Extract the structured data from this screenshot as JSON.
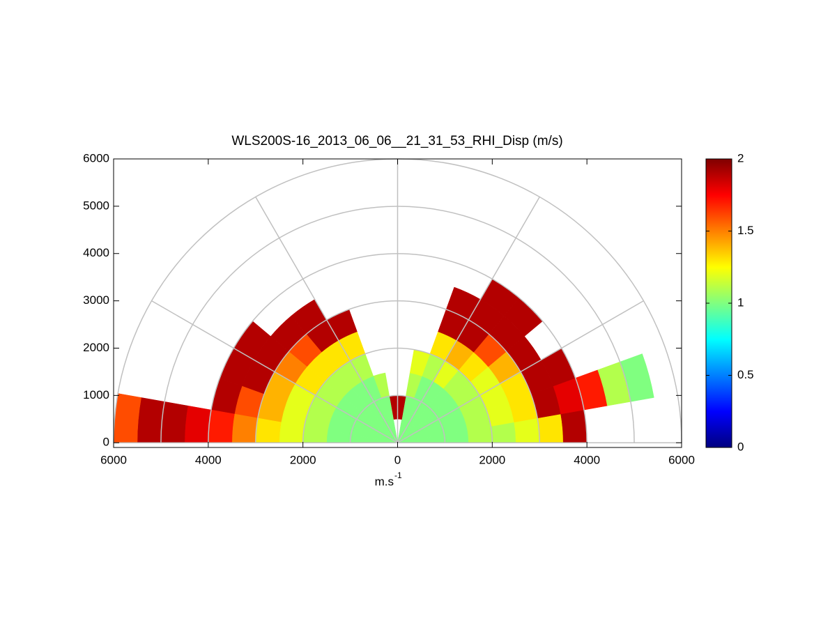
{
  "chart_data": {
    "type": "polar_heatmap",
    "title": "WLS200S-16_2013_06_06__21_31_53_RHI_Disp (m/s)",
    "xlabel": {
      "text": "m.s",
      "superscript": "-1"
    },
    "xlim": [
      -6000,
      6000
    ],
    "ylim": [
      -100,
      6000
    ],
    "xticks": [
      {
        "value": -6000,
        "label": "6000"
      },
      {
        "value": -4000,
        "label": "4000"
      },
      {
        "value": -2000,
        "label": "2000"
      },
      0,
      2000,
      4000,
      6000
    ],
    "yticks": [
      0,
      1000,
      2000,
      3000,
      4000,
      5000,
      6000
    ],
    "rgrid": [
      1000,
      2000,
      3000,
      4000,
      5000,
      6000
    ],
    "thetagrid": [
      0,
      30,
      60,
      90,
      120,
      150,
      180
    ],
    "colormap": "jet",
    "clim": [
      0,
      2
    ],
    "cticks": [
      0,
      0.5,
      1,
      1.5,
      2
    ],
    "theta_bins": [
      0,
      10,
      20,
      30,
      40,
      50,
      60,
      70,
      80,
      90,
      100,
      110,
      120,
      130,
      140,
      150,
      160,
      170,
      180
    ],
    "r_bins": [
      0,
      500,
      1000,
      1500,
      2000,
      2500,
      3000,
      3500,
      4000,
      4500,
      5000,
      5500,
      6000
    ],
    "values": [
      [
        1.0,
        1.0,
        1.0,
        1.1,
        1.1,
        1.2,
        1.3,
        1.9,
        null,
        null,
        null,
        null
      ],
      [
        1.0,
        1.0,
        1.0,
        1.1,
        1.2,
        1.3,
        1.9,
        1.8,
        1.7,
        1.1,
        1.0,
        null
      ],
      [
        1.0,
        1.0,
        1.0,
        1.1,
        1.2,
        1.3,
        1.9,
        1.9,
        null,
        null,
        null,
        null
      ],
      [
        1.0,
        1.0,
        1.0,
        1.1,
        1.2,
        1.4,
        1.9,
        null,
        null,
        null,
        null,
        null
      ],
      [
        1.0,
        1.0,
        1.0,
        1.1,
        1.3,
        1.6,
        1.9,
        1.9,
        null,
        null,
        null,
        null
      ],
      [
        1.0,
        1.0,
        1.0,
        1.2,
        1.4,
        1.9,
        1.9,
        1.9,
        null,
        null,
        null,
        null
      ],
      [
        1.0,
        1.0,
        1.0,
        1.1,
        1.3,
        1.9,
        1.9,
        null,
        null,
        null,
        null,
        null
      ],
      [
        1.0,
        1.0,
        1.1,
        1.2,
        null,
        null,
        null,
        null,
        null,
        null,
        null,
        null
      ],
      [
        null,
        1.9,
        null,
        null,
        null,
        null,
        null,
        null,
        null,
        null,
        null,
        null
      ],
      [
        null,
        1.9,
        null,
        null,
        null,
        null,
        null,
        null,
        null,
        null,
        null,
        null
      ],
      [
        1.0,
        1.0,
        1.1,
        null,
        null,
        null,
        null,
        null,
        null,
        null,
        null,
        null
      ],
      [
        1.0,
        1.0,
        1.0,
        1.1,
        1.3,
        1.9,
        null,
        null,
        null,
        null,
        null,
        null
      ],
      [
        1.0,
        1.0,
        1.0,
        1.1,
        1.3,
        1.9,
        1.9,
        null,
        null,
        null,
        null,
        null
      ],
      [
        1.0,
        1.0,
        1.0,
        1.1,
        1.3,
        1.6,
        1.9,
        null,
        null,
        null,
        null,
        null
      ],
      [
        1.0,
        1.0,
        1.0,
        1.1,
        1.3,
        1.5,
        1.9,
        1.9,
        null,
        null,
        null,
        null
      ],
      [
        1.0,
        1.0,
        1.0,
        1.1,
        1.2,
        1.4,
        1.9,
        1.9,
        null,
        null,
        null,
        null
      ],
      [
        1.0,
        1.0,
        1.0,
        1.1,
        1.2,
        1.4,
        1.6,
        1.9,
        null,
        null,
        null,
        null
      ],
      [
        1.0,
        1.0,
        1.0,
        1.1,
        1.2,
        1.3,
        1.5,
        1.7,
        1.8,
        1.9,
        1.9,
        1.6
      ]
    ]
  }
}
